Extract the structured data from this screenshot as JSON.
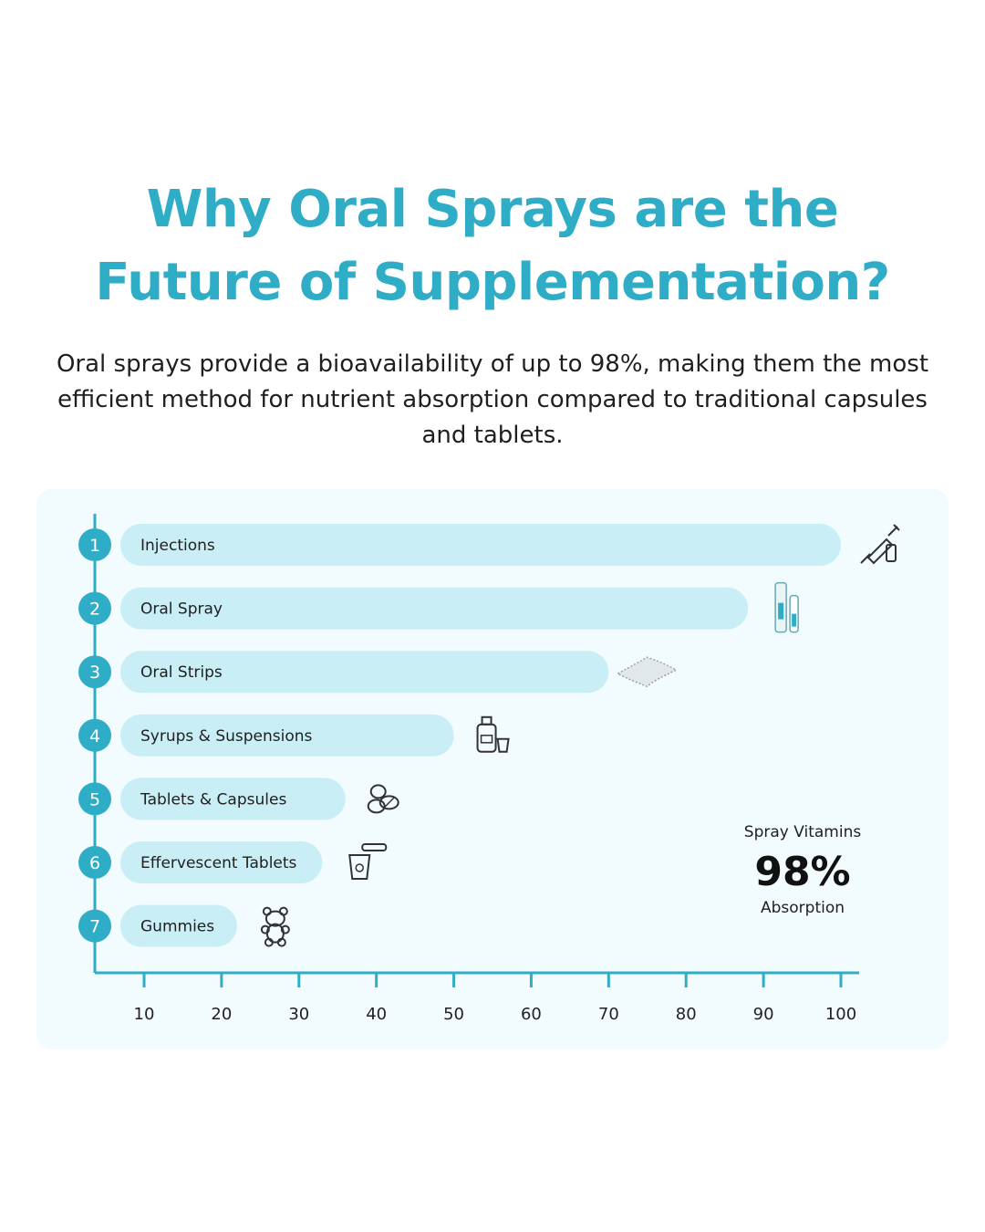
{
  "header": {
    "title_line1": "Why Oral Sprays are the",
    "title_line2": "Future of Supplementation?",
    "subtitle": "Oral sprays provide a bioavailability of up to 98%, making them the most efficient method for nutrient absorption compared to traditional capsules and tablets."
  },
  "callout": {
    "top": "Spray Vitamins",
    "value": "98%",
    "bottom": "Absorption"
  },
  "colors": {
    "accent": "#2fadc7",
    "bar": "#c9eef5",
    "panel": "#f2fbfe"
  },
  "chart_data": {
    "type": "bar",
    "orientation": "horizontal",
    "categories": [
      "Injections",
      "Oral Spray",
      "Oral Strips",
      "Syrups & Suspensions",
      "Tablets & Capsules",
      "Effervescent Tablets",
      "Gummies"
    ],
    "ranks": [
      "1",
      "2",
      "3",
      "4",
      "5",
      "6",
      "7"
    ],
    "icons": [
      "syringe-icon",
      "spray-bottle-icon",
      "oral-strip-icon",
      "syrup-bottle-icon",
      "pills-icon",
      "effervescent-glass-icon",
      "gummy-bear-icon"
    ],
    "values": [
      100,
      88,
      70,
      50,
      36,
      33,
      22
    ],
    "xticks": [
      "10",
      "20",
      "30",
      "40",
      "50",
      "60",
      "70",
      "80",
      "90",
      "100"
    ],
    "xlim": [
      3.5,
      102
    ],
    "grid": false,
    "legend": "none"
  }
}
